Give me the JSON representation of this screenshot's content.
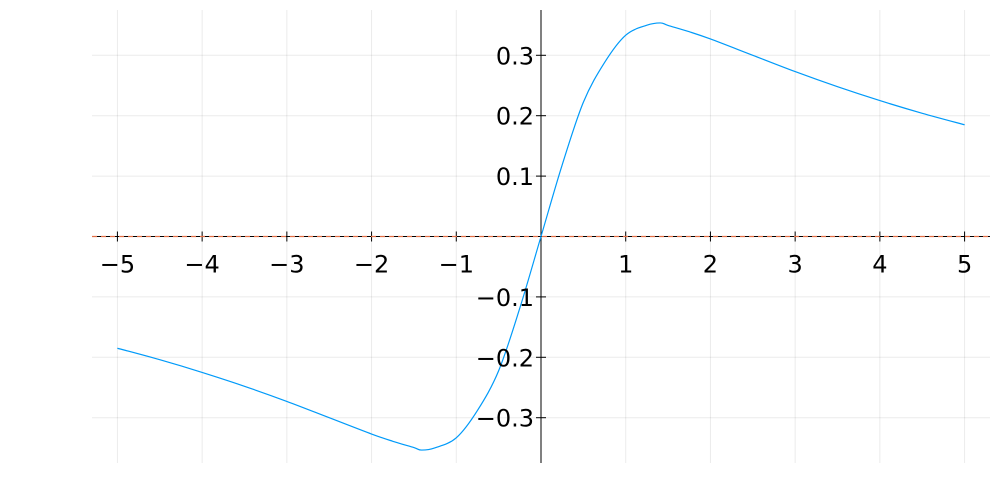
{
  "chart_data": {
    "type": "line",
    "title": "",
    "xlabel": "",
    "ylabel": "",
    "xlim": [
      -5.3,
      5.3
    ],
    "ylim": [
      -0.375,
      0.375
    ],
    "grid": true,
    "legend": "none",
    "x_ticks": [
      -5,
      -4,
      -3,
      -2,
      -1,
      1,
      2,
      3,
      4,
      5
    ],
    "x_tick_labels": [
      "−5",
      "−4",
      "−3",
      "−2",
      "−1",
      "1",
      "2",
      "3",
      "4",
      "5"
    ],
    "y_ticks": [
      0.3,
      0.2,
      0.1,
      -0.1,
      -0.2,
      -0.3
    ],
    "y_tick_labels": [
      "0.3",
      "0.2",
      "0.1",
      "−0.1",
      "−0.2",
      "−0.3"
    ],
    "x_grid": [
      -5,
      -4,
      -3,
      -2,
      -1,
      0,
      1,
      2,
      3,
      4,
      5
    ],
    "y_grid": [
      -0.3,
      -0.2,
      -0.1,
      0,
      0.1,
      0.2,
      0.3
    ],
    "series": [
      {
        "color": "#009af9",
        "x": [
          -5,
          -4.5,
          -4,
          -3.5,
          -3,
          -2.5,
          -2,
          -1.75,
          -1.5,
          -1.41,
          -1.25,
          -1,
          -0.75,
          -0.5,
          -0.25,
          0,
          0.25,
          0.5,
          0.75,
          1,
          1.25,
          1.41,
          1.5,
          1.75,
          2,
          2.5,
          3,
          3.5,
          4,
          4.5,
          5
        ],
        "values": [
          -0.185,
          -0.204,
          -0.225,
          -0.248,
          -0.273,
          -0.3,
          -0.327,
          -0.339,
          -0.3495,
          -0.3536,
          -0.3498,
          -0.3333,
          -0.288,
          -0.2222,
          -0.1185,
          0,
          0.1185,
          0.2222,
          0.288,
          0.3333,
          0.3498,
          0.3536,
          0.3495,
          0.339,
          0.327,
          0.3,
          0.273,
          0.248,
          0.225,
          0.204,
          0.185
        ]
      },
      {
        "color": "#e26f46",
        "dashed": true,
        "x": [
          -5.3,
          5.3
        ],
        "values": [
          0,
          0
        ]
      }
    ]
  }
}
